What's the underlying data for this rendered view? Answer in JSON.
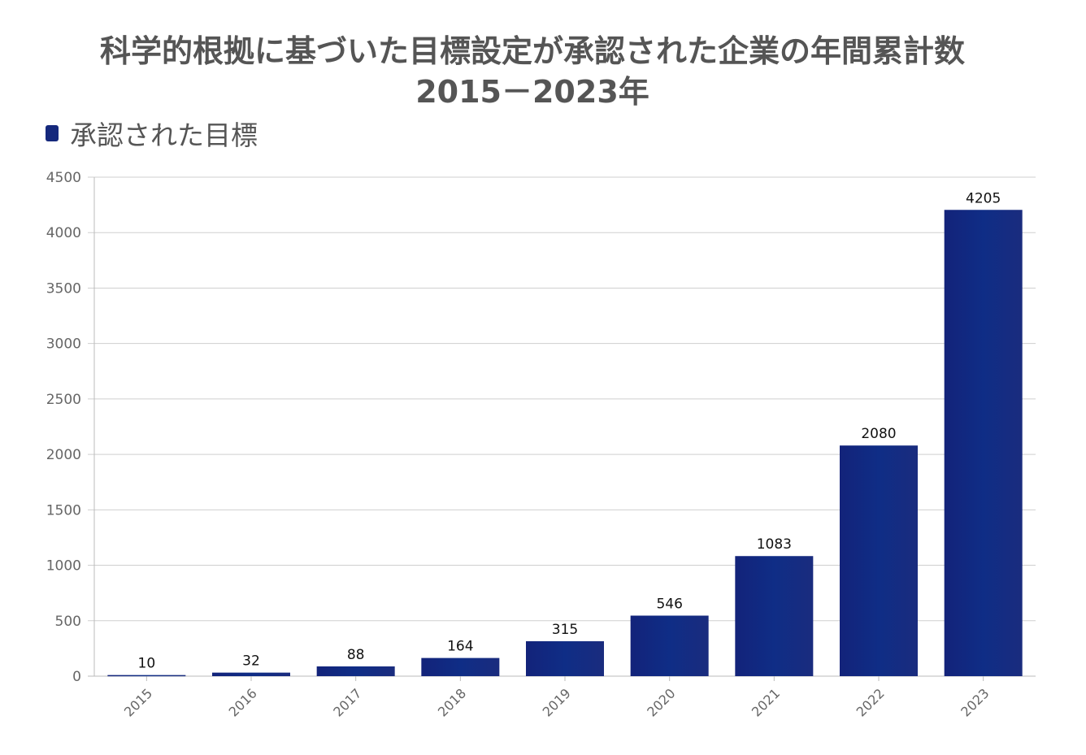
{
  "chart_data": {
    "type": "bar",
    "title": [
      "科学的根拠に基づいた目標設定が承認された企業の年間累計数",
      "2015－2023年"
    ],
    "xlabel": "",
    "ylabel": "",
    "categories": [
      "2015",
      "2016",
      "2017",
      "2018",
      "2019",
      "2020",
      "2021",
      "2022",
      "2023"
    ],
    "series": [
      {
        "name": "承認された目標",
        "values": [
          10,
          32,
          88,
          164,
          315,
          546,
          1083,
          2080,
          4205
        ]
      }
    ],
    "ylim": [
      0,
      4500
    ],
    "yticks": [
      0,
      500,
      1000,
      1500,
      2000,
      2500,
      3000,
      3500,
      4000,
      4500
    ],
    "grid": true,
    "legend": "top-left",
    "data_labels": true,
    "colors": {
      "bar": "#15287c",
      "grid": "#cfcfcf",
      "text": "#555555"
    }
  }
}
